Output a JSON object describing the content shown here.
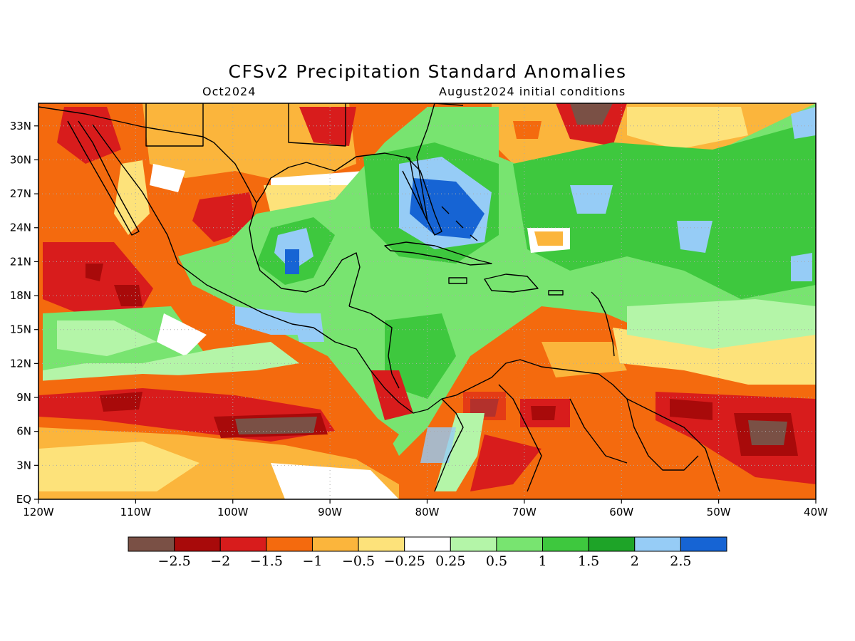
{
  "title": "CFSv2 Precipitation Standard Anomalies",
  "target_month": "Oct2024",
  "initial_conditions": "August2024 initial conditions",
  "map": {
    "lon_range": [
      -120,
      -40
    ],
    "lat_range": [
      0,
      35
    ],
    "lon_tick_labels": [
      "120W",
      "110W",
      "100W",
      "90W",
      "80W",
      "70W",
      "60W",
      "50W",
      "40W"
    ],
    "lat_tick_labels": [
      "EQ",
      "3N",
      "6N",
      "9N",
      "12N",
      "15N",
      "18N",
      "21N",
      "24N",
      "27N",
      "30N",
      "33N"
    ],
    "grid": "dotted"
  },
  "colorbar": {
    "colors": [
      "#7a5045",
      "#a80a0a",
      "#d81c1c",
      "#f46a0e",
      "#fbb53c",
      "#fde27a",
      "#ffffff",
      "#b4f5a8",
      "#78e470",
      "#3ec83e",
      "#1ea428",
      "#96ccf6",
      "#1664d4"
    ],
    "labels": [
      "−2.5",
      "−2",
      "−1.5",
      "−1",
      "−0.5",
      "−0.25",
      "0.25",
      "0.5",
      "1",
      "1.5",
      "2",
      "2.5"
    ]
  }
}
